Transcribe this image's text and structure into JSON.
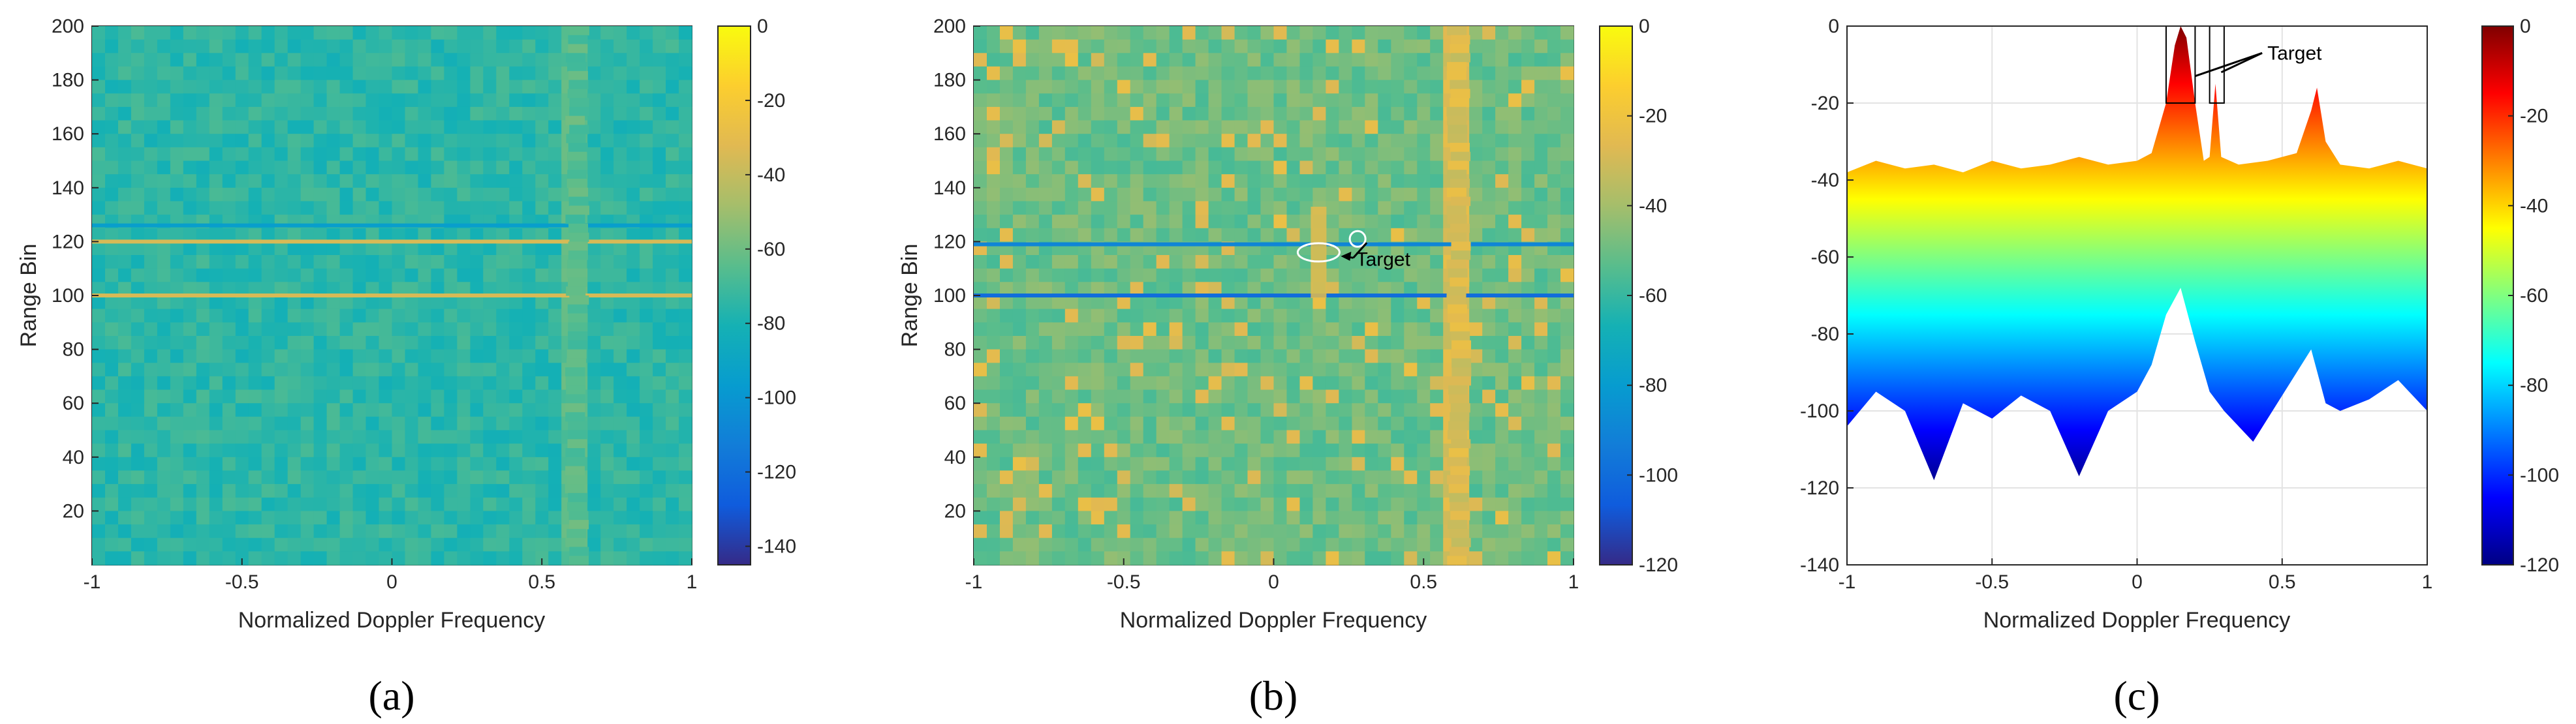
{
  "figure": {
    "captions": [
      "(a)",
      "(b)",
      "(c)"
    ]
  },
  "chart_data": [
    {
      "type": "heatmap",
      "panel": "(a)",
      "title": "",
      "xlabel": "Normalized Doppler Frequency",
      "ylabel": "Range Bin",
      "xlim": [
        -1,
        1
      ],
      "ylim": [
        0,
        200
      ],
      "x_ticks": [
        -1,
        -0.5,
        0,
        0.5,
        1
      ],
      "x_tick_labels": [
        "-1",
        "-0.5",
        "0",
        "0.5",
        "1"
      ],
      "y_ticks": [
        20,
        40,
        60,
        80,
        100,
        120,
        140,
        160,
        180,
        200
      ],
      "y_tick_labels": [
        "20",
        "40",
        "60",
        "80",
        "100",
        "120",
        "140",
        "160",
        "180",
        "200"
      ],
      "colorbar": {
        "range": [
          -145,
          0
        ],
        "ticks": [
          0,
          -20,
          -40,
          -60,
          -80,
          -100,
          -120,
          -140
        ],
        "tick_labels": [
          "0",
          "-20",
          "-40",
          "-60",
          "-80",
          "-100",
          "-120",
          "-140"
        ],
        "colormap": "parula"
      },
      "background_level_db": -75,
      "features": [
        {
          "kind": "horizontal-line",
          "range_bin": 100,
          "level_db": -35
        },
        {
          "kind": "horizontal-line",
          "range_bin": 120,
          "level_db": -35
        },
        {
          "kind": "horizontal-line",
          "range_bin": 126,
          "level_db": -95
        },
        {
          "kind": "vertical-band",
          "doppler": 0.62,
          "level_db": -65
        }
      ]
    },
    {
      "type": "heatmap",
      "panel": "(b)",
      "title": "",
      "xlabel": "Normalized Doppler Frequency",
      "ylabel": "Range Bin",
      "xlim": [
        -1,
        1
      ],
      "ylim": [
        0,
        200
      ],
      "x_ticks": [
        -1,
        -0.5,
        0,
        0.5,
        1
      ],
      "x_tick_labels": [
        "-1",
        "-0.5",
        "0",
        "0.5",
        "1"
      ],
      "y_ticks": [
        20,
        40,
        60,
        80,
        100,
        120,
        140,
        160,
        180,
        200
      ],
      "y_tick_labels": [
        "20",
        "40",
        "60",
        "80",
        "100",
        "120",
        "140",
        "160",
        "180",
        "200"
      ],
      "colorbar": {
        "range": [
          -120,
          0
        ],
        "ticks": [
          0,
          -20,
          -40,
          -60,
          -80,
          -100,
          -120
        ],
        "tick_labels": [
          "0",
          "-20",
          "-40",
          "-60",
          "-80",
          "-100",
          "-120"
        ],
        "colormap": "parula"
      },
      "background_level_db": -50,
      "features": [
        {
          "kind": "horizontal-line",
          "range_bin": 100,
          "level_db": -100
        },
        {
          "kind": "horizontal-line",
          "range_bin": 119,
          "level_db": -90
        },
        {
          "kind": "vertical-band",
          "doppler": 0.62,
          "level_db": -28
        },
        {
          "kind": "target-blob",
          "doppler": 0.15,
          "range_bin": 116,
          "level_db": -25
        }
      ],
      "annotations": [
        {
          "text": "Target",
          "doppler": 0.27,
          "range_bin": 113
        },
        {
          "marker": "ellipse",
          "doppler": 0.15,
          "range_bin": 116
        },
        {
          "marker": "circle",
          "doppler": 0.28,
          "range_bin": 121
        }
      ]
    },
    {
      "type": "area",
      "panel": "(c)",
      "title": "",
      "xlabel": "Normalized Doppler Frequency",
      "ylabel": "",
      "xlim": [
        -1,
        1
      ],
      "ylim": [
        -140,
        0
      ],
      "grid": true,
      "x_ticks": [
        -1,
        -0.5,
        0,
        0.5,
        1
      ],
      "x_tick_labels": [
        "-1",
        "-0.5",
        "0",
        "0.5",
        "1"
      ],
      "y_ticks": [
        0,
        -20,
        -40,
        -60,
        -80,
        -100,
        -120,
        -140
      ],
      "y_tick_labels": [
        "0",
        "-20",
        "-40",
        "-60",
        "-80",
        "-100",
        "-120",
        "-140"
      ],
      "colorbar": {
        "range": [
          -120,
          0
        ],
        "ticks": [
          0,
          -20,
          -40,
          -60,
          -80,
          -100,
          -120
        ],
        "tick_labels": [
          "0",
          "-20",
          "-40",
          "-60",
          "-80",
          "-100",
          "-120"
        ],
        "colormap": "jet"
      },
      "series": [
        {
          "name": "upper envelope",
          "x": [
            -1,
            -0.9,
            -0.8,
            -0.7,
            -0.6,
            -0.5,
            -0.4,
            -0.3,
            -0.2,
            -0.1,
            0,
            0.05,
            0.1,
            0.13,
            0.15,
            0.17,
            0.2,
            0.23,
            0.25,
            0.27,
            0.29,
            0.35,
            0.45,
            0.55,
            0.6,
            0.62,
            0.65,
            0.7,
            0.8,
            0.9,
            1
          ],
          "values": [
            -38,
            -35,
            -37,
            -36,
            -38,
            -35,
            -37,
            -36,
            -34,
            -36,
            -35,
            -33,
            -20,
            -5,
            0,
            -3,
            -20,
            -35,
            -34,
            -15,
            -34,
            -36,
            -35,
            -33,
            -22,
            -16,
            -30,
            -36,
            -37,
            -35,
            -37
          ]
        },
        {
          "name": "lower envelope",
          "x": [
            -1,
            -0.9,
            -0.8,
            -0.7,
            -0.6,
            -0.5,
            -0.4,
            -0.3,
            -0.2,
            -0.1,
            0,
            0.05,
            0.1,
            0.15,
            0.2,
            0.25,
            0.3,
            0.4,
            0.5,
            0.6,
            0.65,
            0.7,
            0.8,
            0.9,
            1
          ],
          "values": [
            -104,
            -95,
            -100,
            -118,
            -98,
            -102,
            -96,
            -100,
            -117,
            -100,
            -95,
            -88,
            -75,
            -68,
            -82,
            -95,
            -100,
            -108,
            -96,
            -84,
            -98,
            -100,
            -97,
            -92,
            -100
          ]
        }
      ],
      "annotations": [
        {
          "text": "Target",
          "doppler": 0.44,
          "value": -7
        },
        {
          "marker": "box",
          "doppler_range": [
            0.1,
            0.2
          ],
          "value_range": [
            -20,
            0
          ]
        },
        {
          "marker": "box",
          "doppler_range": [
            0.25,
            0.3
          ],
          "value_range": [
            -20,
            0
          ]
        }
      ]
    }
  ]
}
